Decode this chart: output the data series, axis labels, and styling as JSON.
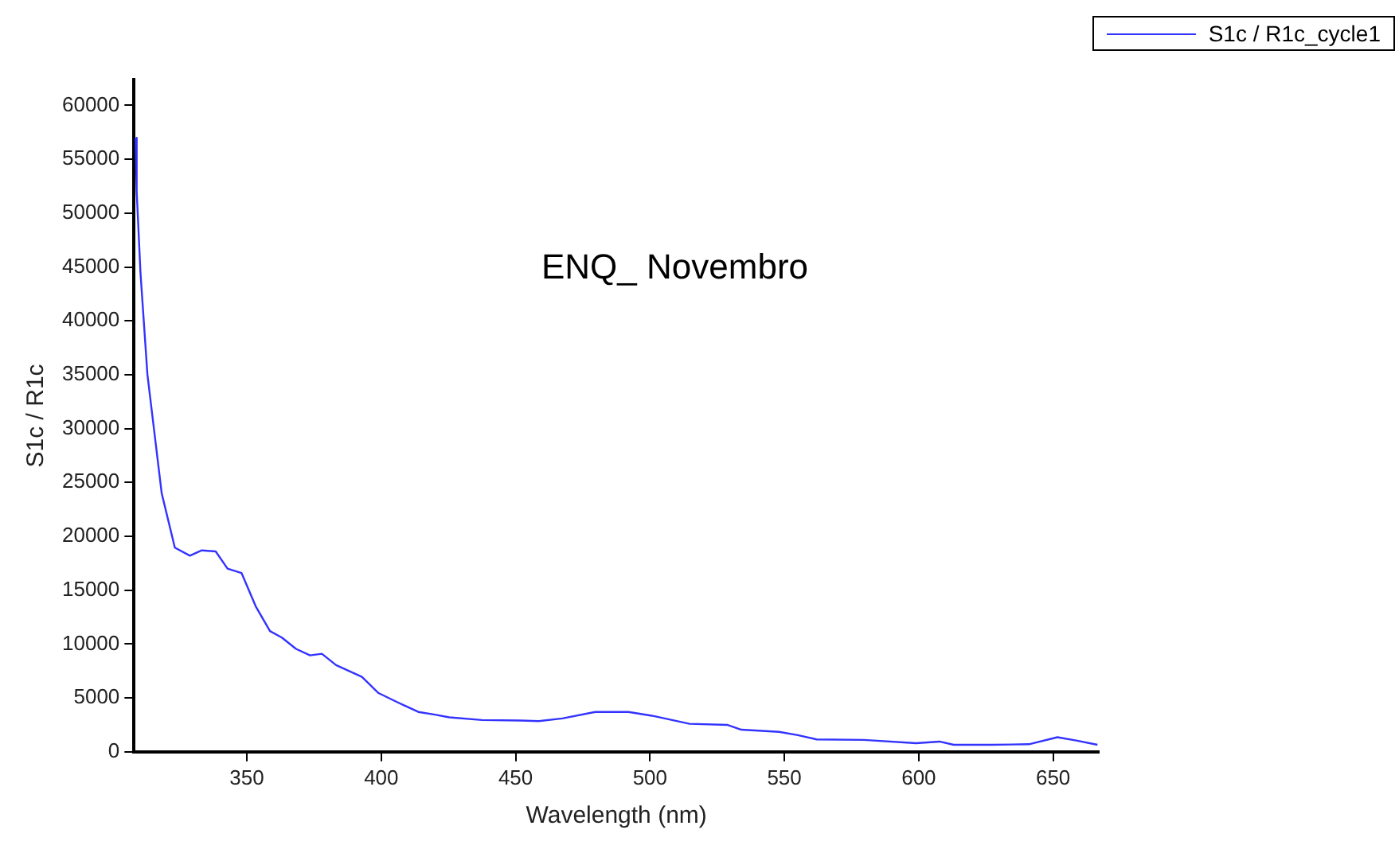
{
  "chart_data": {
    "type": "line",
    "xlabel": "Wavelength (nm)",
    "ylabel": "S1c / R1c",
    "annotations": [
      "ENQ_ Novembro"
    ],
    "xlim": [
      308,
      667
    ],
    "xticks": [
      350,
      400,
      450,
      500,
      550,
      600,
      650
    ],
    "ylim": [
      0,
      62400
    ],
    "yticks": [
      0,
      5000,
      10000,
      15000,
      20000,
      25000,
      30000,
      35000,
      40000,
      45000,
      50000,
      55000,
      60000
    ],
    "grid": false,
    "legend": "top right",
    "marker": "none",
    "line_style": "solid",
    "series": [
      {
        "name": "S1c / R1c_cycle1",
        "color": "#3333ff",
        "x": [
          308.6,
          309,
          310.4,
          313,
          318.3,
          323.2,
          328.8,
          333.2,
          338.4,
          342.8,
          348,
          353.3,
          358.6,
          363,
          368.3,
          373.5,
          377.9,
          383.2,
          392.8,
          399,
          406,
          413.8,
          420,
          425.3,
          437.5,
          451.6,
          458.6,
          467.4,
          479.6,
          488.4,
          492,
          500.7,
          514.7,
          528.7,
          534,
          548,
          555,
          562,
          579.6,
          599,
          607.7,
          613,
          627,
          641,
          651.6,
          658.6,
          666.5
        ],
        "values": [
          57000,
          52000,
          44500,
          35000,
          24000,
          18950,
          18200,
          18700,
          18600,
          17000,
          16600,
          13500,
          11200,
          10600,
          9550,
          8950,
          9100,
          8050,
          6950,
          5450,
          4600,
          3700,
          3450,
          3200,
          2950,
          2900,
          2850,
          3100,
          3700,
          3700,
          3700,
          3350,
          2600,
          2500,
          2050,
          1850,
          1550,
          1150,
          1100,
          800,
          950,
          650,
          650,
          700,
          1350,
          1050,
          650
        ]
      }
    ]
  }
}
